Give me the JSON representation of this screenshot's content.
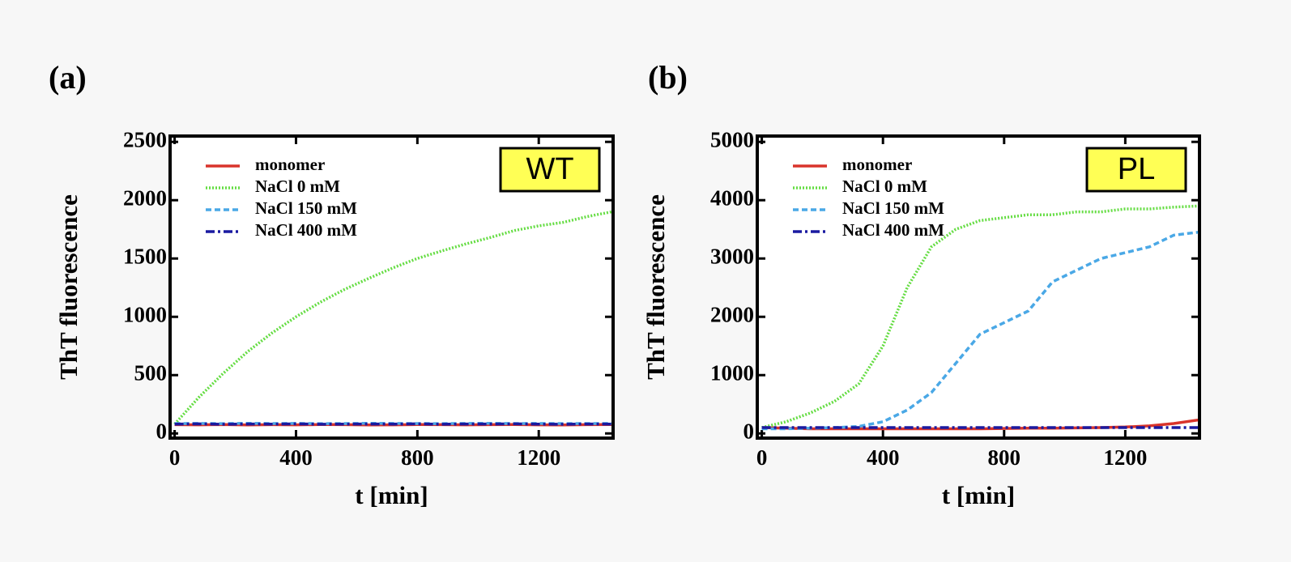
{
  "chart_data": [
    {
      "type": "line",
      "panel_label": "(a)",
      "badge": "WT",
      "xlabel": "t [min]",
      "ylabel": "ThT fluorescence",
      "x": [
        0,
        80,
        160,
        240,
        320,
        400,
        480,
        560,
        640,
        720,
        800,
        880,
        960,
        1040,
        1120,
        1200,
        1280,
        1360,
        1440
      ],
      "xlim": [
        -15,
        1445
      ],
      "xticks": [
        0,
        400,
        800,
        1200
      ],
      "ylim": [
        -40,
        2550
      ],
      "yticks": [
        0,
        500,
        1000,
        1500,
        2000,
        2500
      ],
      "legend": "upper left",
      "series": [
        {
          "name": "monomer",
          "color": "#d9342b",
          "style": "solid",
          "values": [
            75,
            74,
            76,
            73,
            75,
            74,
            76,
            75,
            73,
            74,
            76,
            75,
            74,
            75,
            76,
            74,
            73,
            75,
            76
          ]
        },
        {
          "name": "NaCl 0 mM",
          "color": "#66dd44",
          "style": "dotted",
          "values": [
            80,
            310,
            515,
            700,
            860,
            1000,
            1125,
            1235,
            1330,
            1420,
            1500,
            1565,
            1625,
            1680,
            1740,
            1780,
            1810,
            1860,
            1900
          ]
        },
        {
          "name": "NaCl 150 mM",
          "color": "#4aa8e6",
          "style": "dashed",
          "values": [
            85,
            86,
            84,
            87,
            85,
            86,
            84,
            85,
            87,
            86,
            85,
            84,
            86,
            87,
            85,
            86,
            84,
            85,
            86
          ]
        },
        {
          "name": "NaCl 400 mM",
          "color": "#1a1aa0",
          "style": "dashdot",
          "values": [
            80,
            82,
            79,
            81,
            80,
            82,
            79,
            80,
            81,
            80,
            82,
            79,
            81,
            80,
            82,
            80,
            79,
            81,
            80
          ]
        }
      ]
    },
    {
      "type": "line",
      "panel_label": "(b)",
      "badge": "PL",
      "xlabel": "t [min]",
      "ylabel": "ThT fluorescence",
      "x": [
        0,
        80,
        160,
        240,
        320,
        400,
        480,
        560,
        640,
        720,
        800,
        880,
        960,
        1040,
        1120,
        1200,
        1280,
        1360,
        1440
      ],
      "xlim": [
        -15,
        1445
      ],
      "xticks": [
        0,
        400,
        800,
        1200
      ],
      "ylim": [
        -80,
        5100
      ],
      "yticks": [
        0,
        1000,
        2000,
        3000,
        4000,
        5000
      ],
      "legend": "upper left",
      "series": [
        {
          "name": "monomer",
          "color": "#d9342b",
          "style": "solid",
          "values": [
            100,
            90,
            80,
            80,
            80,
            80,
            80,
            80,
            80,
            80,
            85,
            90,
            90,
            95,
            100,
            110,
            130,
            170,
            230
          ]
        },
        {
          "name": "NaCl 0 mM",
          "color": "#66dd44",
          "style": "dotted",
          "values": [
            100,
            200,
            350,
            550,
            850,
            1500,
            2500,
            3200,
            3500,
            3650,
            3700,
            3750,
            3750,
            3800,
            3800,
            3850,
            3850,
            3880,
            3900
          ]
        },
        {
          "name": "NaCl 150 mM",
          "color": "#4aa8e6",
          "style": "dashed",
          "values": [
            80,
            80,
            90,
            100,
            120,
            200,
            400,
            700,
            1200,
            1700,
            1900,
            2100,
            2600,
            2800,
            3000,
            3100,
            3200,
            3400,
            3450
          ]
        },
        {
          "name": "NaCl 400 mM",
          "color": "#1a1aa0",
          "style": "dashdot",
          "values": [
            100,
            100,
            100,
            100,
            100,
            100,
            100,
            100,
            100,
            100,
            100,
            100,
            100,
            100,
            100,
            100,
            100,
            100,
            100
          ]
        }
      ]
    }
  ]
}
